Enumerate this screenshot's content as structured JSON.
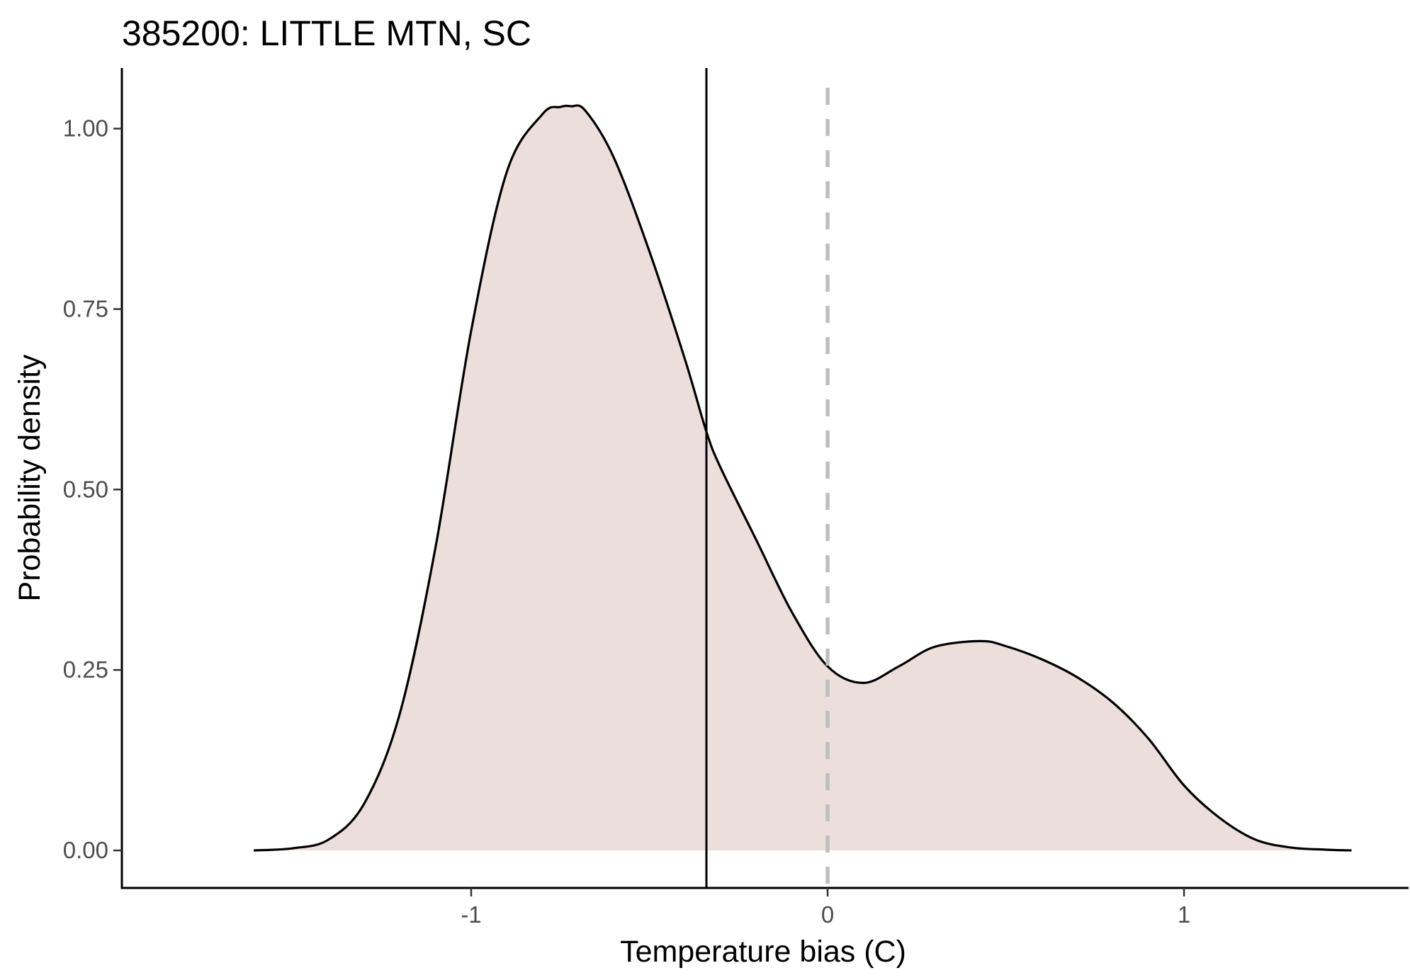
{
  "chart_data": {
    "type": "area",
    "title": "385200: LITTLE MTN, SC",
    "xlabel": "Temperature bias (C)",
    "ylabel": "Probability density",
    "xlim": [
      -1.98,
      1.63
    ],
    "ylim": [
      -0.052,
      1.084
    ],
    "x_ticks": [
      -1,
      0,
      1
    ],
    "x_tick_labels": [
      "-1",
      "0",
      "1"
    ],
    "y_ticks": [
      0,
      0.25,
      0.5,
      0.75,
      1.0
    ],
    "y_tick_labels": [
      "0.00",
      "0.25",
      "0.50",
      "0.75",
      "1.00"
    ],
    "grid": false,
    "legend": "none",
    "fill_color": "#ecdedb",
    "line_color": "#000000",
    "density": {
      "x": [
        -1.61,
        -1.5,
        -1.4,
        -1.3,
        -1.2,
        -1.1,
        -1.0,
        -0.9,
        -0.8,
        -0.75,
        -0.72,
        -0.68,
        -0.6,
        -0.5,
        -0.4,
        -0.34,
        -0.3,
        -0.2,
        -0.1,
        0.0,
        0.1,
        0.2,
        0.3,
        0.43,
        0.5,
        0.6,
        0.7,
        0.8,
        0.9,
        1.0,
        1.1,
        1.2,
        1.3,
        1.4,
        1.47
      ],
      "y": [
        0.0,
        0.003,
        0.015,
        0.065,
        0.19,
        0.42,
        0.72,
        0.94,
        1.02,
        1.03,
        1.031,
        1.025,
        0.96,
        0.83,
        0.68,
        0.58,
        0.53,
        0.43,
        0.33,
        0.255,
        0.232,
        0.255,
        0.282,
        0.29,
        0.283,
        0.265,
        0.24,
        0.205,
        0.155,
        0.09,
        0.045,
        0.015,
        0.004,
        0.001,
        0.0
      ]
    },
    "reference_lines": [
      {
        "x": -0.34,
        "style": "solid",
        "color": "#000000"
      },
      {
        "x": 0,
        "style": "dashed",
        "color": "#bebebe"
      }
    ]
  }
}
